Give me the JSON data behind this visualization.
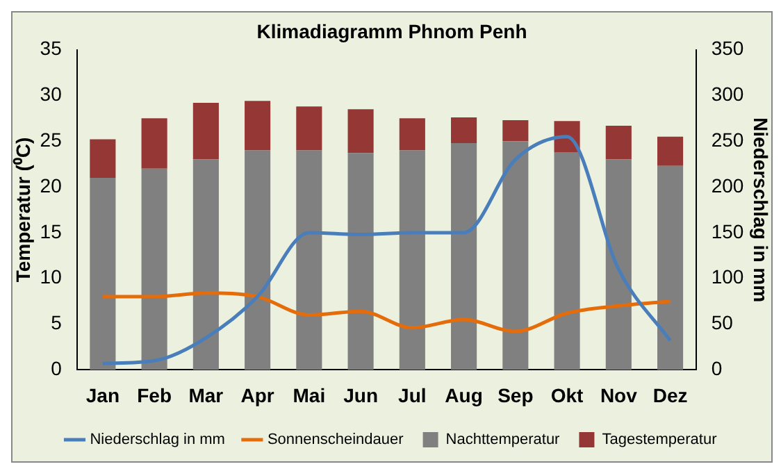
{
  "chart_data": {
    "type": "bar",
    "title": "Klimadiagramm Phnom Penh",
    "ylabel": "Temperatur (⁰C)",
    "y2label": "Niederschlag in mm",
    "categories": [
      "Jan",
      "Feb",
      "Mar",
      "Apr",
      "Mai",
      "Jun",
      "Jul",
      "Aug",
      "Sep",
      "Okt",
      "Nov",
      "Dez"
    ],
    "stacked": true,
    "ylim": [
      0,
      35
    ],
    "yticks": [
      0,
      5,
      10,
      15,
      20,
      25,
      30,
      35
    ],
    "y2lim": [
      0,
      350
    ],
    "y2ticks": [
      0,
      50,
      100,
      150,
      200,
      250,
      300,
      350
    ],
    "legend": "bottom",
    "series": [
      {
        "name": "Nachttemperatur",
        "color": "#808080",
        "values": [
          21,
          22,
          23,
          24,
          24,
          23.7,
          24,
          24.8,
          25,
          23.8,
          23,
          22.3
        ]
      },
      {
        "name": "Tagestemperatur",
        "color": "#953735",
        "values": [
          4.2,
          5.5,
          6.2,
          5.4,
          4.8,
          4.8,
          3.5,
          2.8,
          2.3,
          3.4,
          3.7,
          3.2
        ]
      },
      {
        "name": "Niederschlag in mm",
        "type": "line",
        "axis": "y2",
        "color": "#4a7ebb",
        "values": [
          7,
          10,
          35,
          80,
          150,
          148,
          150,
          150,
          230,
          255,
          110,
          32
        ]
      },
      {
        "name": "Sonnenscheindauer",
        "type": "line",
        "color": "#e46c0a",
        "values": [
          8,
          8,
          8.4,
          8,
          6,
          6.4,
          4.6,
          5.5,
          4.2,
          6.2,
          7,
          7.5
        ]
      }
    ]
  }
}
